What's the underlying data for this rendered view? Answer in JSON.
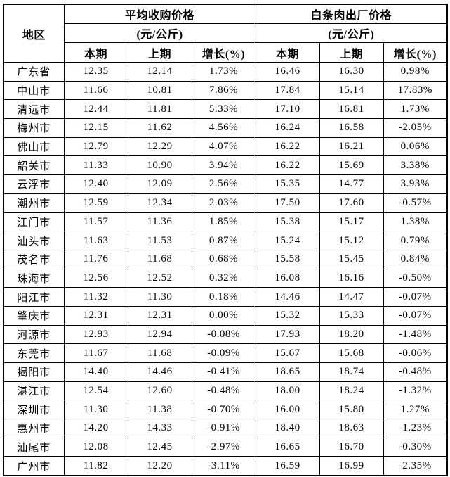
{
  "colors": {
    "text": "#000000",
    "border": "#000000",
    "background": "#ffffff"
  },
  "table": {
    "region_header": "地区",
    "groups": [
      {
        "title": "平均收购价格",
        "unit": "(元/公斤)"
      },
      {
        "title": "白条肉出厂价格",
        "unit": "(元/公斤)"
      }
    ],
    "sub_headers": [
      "本期",
      "上期",
      "增长(%)"
    ],
    "rows": [
      {
        "region": "广东省",
        "values": [
          "12.35",
          "12.14",
          "1.73%",
          "16.46",
          "16.30",
          "0.98%"
        ]
      },
      {
        "region": "中山市",
        "values": [
          "11.66",
          "10.81",
          "7.86%",
          "17.84",
          "15.14",
          "17.83%"
        ]
      },
      {
        "region": "清远市",
        "values": [
          "12.44",
          "11.81",
          "5.33%",
          "17.10",
          "16.81",
          "1.73%"
        ]
      },
      {
        "region": "梅州市",
        "values": [
          "12.15",
          "11.62",
          "4.56%",
          "16.24",
          "16.58",
          "-2.05%"
        ]
      },
      {
        "region": "佛山市",
        "values": [
          "12.79",
          "12.29",
          "4.07%",
          "16.22",
          "16.21",
          "0.06%"
        ]
      },
      {
        "region": "韶关市",
        "values": [
          "11.33",
          "10.90",
          "3.94%",
          "16.22",
          "15.69",
          "3.38%"
        ]
      },
      {
        "region": "云浮市",
        "values": [
          "12.40",
          "12.09",
          "2.56%",
          "15.35",
          "14.77",
          "3.93%"
        ]
      },
      {
        "region": "潮州市",
        "values": [
          "12.59",
          "12.34",
          "2.03%",
          "17.50",
          "17.60",
          "-0.57%"
        ]
      },
      {
        "region": "江门市",
        "values": [
          "11.57",
          "11.36",
          "1.85%",
          "15.38",
          "15.17",
          "1.38%"
        ]
      },
      {
        "region": "汕头市",
        "values": [
          "11.63",
          "11.53",
          "0.87%",
          "15.24",
          "15.12",
          "0.79%"
        ]
      },
      {
        "region": "茂名市",
        "values": [
          "11.76",
          "11.68",
          "0.68%",
          "15.58",
          "15.45",
          "0.84%"
        ]
      },
      {
        "region": "珠海市",
        "values": [
          "12.56",
          "12.52",
          "0.32%",
          "16.08",
          "16.16",
          "-0.50%"
        ]
      },
      {
        "region": "阳江市",
        "values": [
          "11.32",
          "11.30",
          "0.18%",
          "14.46",
          "14.47",
          "-0.07%"
        ]
      },
      {
        "region": "肇庆市",
        "values": [
          "12.31",
          "12.31",
          "0.00%",
          "15.32",
          "15.33",
          "-0.07%"
        ]
      },
      {
        "region": "河源市",
        "values": [
          "12.93",
          "12.94",
          "-0.08%",
          "17.93",
          "18.20",
          "-1.48%"
        ]
      },
      {
        "region": "东莞市",
        "values": [
          "11.67",
          "11.68",
          "-0.09%",
          "15.67",
          "15.68",
          "-0.06%"
        ]
      },
      {
        "region": "揭阳市",
        "values": [
          "14.40",
          "14.46",
          "-0.41%",
          "18.65",
          "18.74",
          "-0.48%"
        ]
      },
      {
        "region": "湛江市",
        "values": [
          "12.54",
          "12.60",
          "-0.48%",
          "18.00",
          "18.24",
          "-1.32%"
        ]
      },
      {
        "region": "深圳市",
        "values": [
          "11.30",
          "11.38",
          "-0.70%",
          "16.00",
          "15.80",
          "1.27%"
        ]
      },
      {
        "region": "惠州市",
        "values": [
          "14.20",
          "14.33",
          "-0.91%",
          "18.40",
          "18.63",
          "-1.23%"
        ]
      },
      {
        "region": "汕尾市",
        "values": [
          "12.08",
          "12.45",
          "-2.97%",
          "16.65",
          "16.70",
          "-0.30%"
        ]
      },
      {
        "region": "广州市",
        "values": [
          "11.82",
          "12.20",
          "-3.11%",
          "16.59",
          "16.99",
          "-2.35%"
        ]
      }
    ]
  }
}
